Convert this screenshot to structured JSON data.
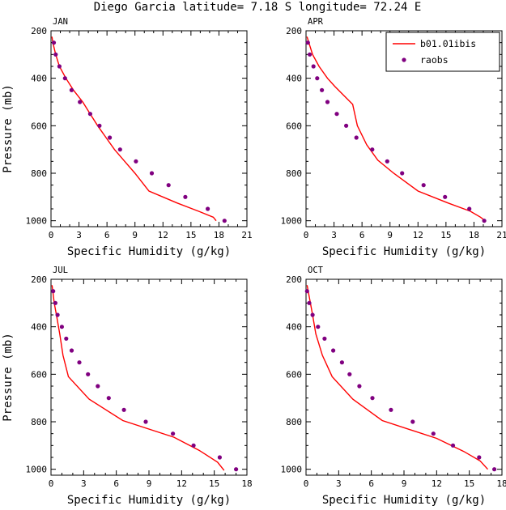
{
  "title": "Diego Garcia  latitude= 7.18 S longitude= 72.24 E",
  "legend": {
    "model_label": "b01.01ibis",
    "obs_label": "raobs"
  },
  "colors": {
    "model": "#ff0000",
    "obs": "#800080",
    "axis": "#000000"
  },
  "chart_data": [
    {
      "type": "line",
      "panel": "JAN",
      "xlabel": "Specific Humidity (g/kg)",
      "ylabel": "Pressure (mb)",
      "xlim": [
        0,
        21
      ],
      "ylim": [
        200,
        1025
      ],
      "y_inverted": true,
      "xticks": [
        0,
        3,
        6,
        9,
        12,
        15,
        18,
        21
      ],
      "yticks": [
        200,
        400,
        600,
        800,
        1000
      ],
      "legend": false,
      "series": [
        {
          "name": "b01.01ibis",
          "kind": "line",
          "points": [
            [
              0.1,
              225
            ],
            [
              0.2,
              250
            ],
            [
              0.5,
              300
            ],
            [
              0.9,
              350
            ],
            [
              1.6,
              400
            ],
            [
              2.4,
              450
            ],
            [
              3.4,
              500
            ],
            [
              4.2,
              550
            ],
            [
              5.0,
              600
            ],
            [
              5.9,
              650
            ],
            [
              6.8,
              700
            ],
            [
              7.9,
              750
            ],
            [
              9.0,
              800
            ],
            [
              10.5,
              875
            ],
            [
              13.5,
              925
            ],
            [
              15.8,
              960
            ],
            [
              17.4,
              985
            ],
            [
              17.7,
              1000
            ]
          ]
        },
        {
          "name": "raobs",
          "kind": "scatter",
          "points": [
            [
              0.3,
              250
            ],
            [
              0.5,
              300
            ],
            [
              0.9,
              350
            ],
            [
              1.5,
              400
            ],
            [
              2.2,
              450
            ],
            [
              3.1,
              500
            ],
            [
              4.2,
              550
            ],
            [
              5.2,
              600
            ],
            [
              6.3,
              650
            ],
            [
              7.4,
              700
            ],
            [
              9.1,
              750
            ],
            [
              10.8,
              800
            ],
            [
              12.6,
              850
            ],
            [
              14.4,
              900
            ],
            [
              16.8,
              950
            ],
            [
              18.6,
              1000
            ]
          ]
        }
      ]
    },
    {
      "type": "line",
      "panel": "APR",
      "xlabel": "Specific Humidity (g/kg)",
      "ylabel": "",
      "xlim": [
        0,
        21
      ],
      "ylim": [
        200,
        1025
      ],
      "y_inverted": true,
      "xticks": [
        0,
        3,
        6,
        9,
        12,
        15,
        18,
        21
      ],
      "yticks": [
        200,
        400,
        600,
        800,
        1000
      ],
      "legend": "top-right",
      "series": [
        {
          "name": "b01.01ibis",
          "kind": "line",
          "points": [
            [
              0.1,
              225
            ],
            [
              0.3,
              250
            ],
            [
              0.7,
              300
            ],
            [
              1.4,
              350
            ],
            [
              2.3,
              400
            ],
            [
              3.1,
              435
            ],
            [
              5.0,
              510
            ],
            [
              5.5,
              600
            ],
            [
              6.5,
              680
            ],
            [
              7.7,
              745
            ],
            [
              9.4,
              800
            ],
            [
              12.0,
              875
            ],
            [
              15.2,
              925
            ],
            [
              17.6,
              960
            ],
            [
              18.7,
              985
            ],
            [
              19.2,
              1000
            ]
          ]
        },
        {
          "name": "raobs",
          "kind": "scatter",
          "points": [
            [
              0.2,
              250
            ],
            [
              0.4,
              300
            ],
            [
              0.8,
              350
            ],
            [
              1.2,
              400
            ],
            [
              1.7,
              450
            ],
            [
              2.3,
              500
            ],
            [
              3.3,
              550
            ],
            [
              4.3,
              600
            ],
            [
              5.4,
              650
            ],
            [
              7.1,
              700
            ],
            [
              8.7,
              750
            ],
            [
              10.3,
              800
            ],
            [
              12.6,
              850
            ],
            [
              14.9,
              900
            ],
            [
              17.5,
              950
            ],
            [
              19.1,
              1000
            ]
          ]
        }
      ]
    },
    {
      "type": "line",
      "panel": "JUL",
      "xlabel": "Specific Humidity (g/kg)",
      "ylabel": "Pressure (mb)",
      "xlim": [
        0,
        18
      ],
      "ylim": [
        200,
        1025
      ],
      "y_inverted": true,
      "xticks": [
        0,
        3,
        6,
        9,
        12,
        15,
        18
      ],
      "yticks": [
        200,
        400,
        600,
        800,
        1000
      ],
      "legend": false,
      "series": [
        {
          "name": "b01.01ibis",
          "kind": "line",
          "points": [
            [
              0.1,
              225
            ],
            [
              0.3,
              300
            ],
            [
              0.5,
              350
            ],
            [
              0.8,
              430
            ],
            [
              1.1,
              520
            ],
            [
              1.6,
              610
            ],
            [
              3.5,
              705
            ],
            [
              6.6,
              795
            ],
            [
              11.3,
              865
            ],
            [
              13.6,
              920
            ],
            [
              15.3,
              970
            ],
            [
              15.9,
              1005
            ]
          ]
        },
        {
          "name": "raobs",
          "kind": "scatter",
          "points": [
            [
              0.2,
              250
            ],
            [
              0.4,
              300
            ],
            [
              0.6,
              350
            ],
            [
              1.0,
              400
            ],
            [
              1.4,
              450
            ],
            [
              1.9,
              500
            ],
            [
              2.6,
              550
            ],
            [
              3.4,
              600
            ],
            [
              4.3,
              650
            ],
            [
              5.3,
              700
            ],
            [
              6.7,
              750
            ],
            [
              8.7,
              800
            ],
            [
              11.2,
              850
            ],
            [
              13.1,
              900
            ],
            [
              15.5,
              950
            ],
            [
              17.0,
              1000
            ]
          ]
        }
      ]
    },
    {
      "type": "line",
      "panel": "OCT",
      "xlabel": "Specific Humidity (g/kg)",
      "ylabel": "",
      "xlim": [
        0,
        18
      ],
      "ylim": [
        200,
        1025
      ],
      "y_inverted": true,
      "xticks": [
        0,
        3,
        6,
        9,
        12,
        15,
        18
      ],
      "yticks": [
        200,
        400,
        600,
        800,
        1000
      ],
      "legend": false,
      "series": [
        {
          "name": "b01.01ibis",
          "kind": "line",
          "points": [
            [
              0.1,
              225
            ],
            [
              0.2,
              250
            ],
            [
              0.4,
              300
            ],
            [
              0.6,
              350
            ],
            [
              0.9,
              430
            ],
            [
              1.5,
              520
            ],
            [
              2.4,
              610
            ],
            [
              4.3,
              705
            ],
            [
              7.0,
              795
            ],
            [
              12.0,
              870
            ],
            [
              14.5,
              925
            ],
            [
              16.0,
              965
            ],
            [
              16.7,
              1000
            ]
          ]
        },
        {
          "name": "raobs",
          "kind": "scatter",
          "points": [
            [
              0.1,
              250
            ],
            [
              0.3,
              300
            ],
            [
              0.6,
              350
            ],
            [
              1.1,
              400
            ],
            [
              1.7,
              450
            ],
            [
              2.5,
              500
            ],
            [
              3.3,
              550
            ],
            [
              4.0,
              600
            ],
            [
              4.9,
              650
            ],
            [
              6.1,
              700
            ],
            [
              7.8,
              750
            ],
            [
              9.8,
              800
            ],
            [
              11.7,
              850
            ],
            [
              13.5,
              900
            ],
            [
              15.9,
              950
            ],
            [
              17.3,
              1000
            ]
          ]
        }
      ]
    }
  ]
}
